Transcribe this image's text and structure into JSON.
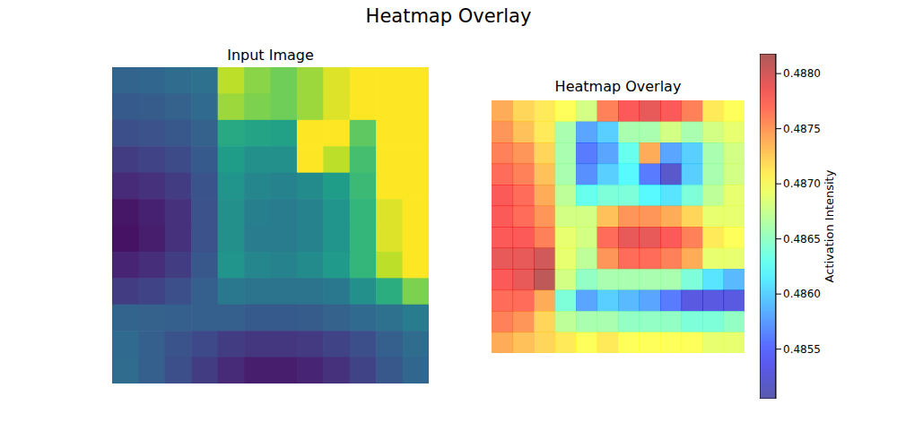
{
  "title": "Heatmap Overlay",
  "chart_data": [
    {
      "type": "heatmap",
      "title": "Input Image",
      "tick_labels": false,
      "color_range": [
        0,
        1
      ],
      "cells": [
        [
          0.32,
          0.33,
          0.35,
          0.37,
          0.9,
          0.82,
          0.78,
          0.85,
          0.95,
          1,
          1,
          1
        ],
        [
          0.28,
          0.29,
          0.31,
          0.34,
          0.85,
          0.8,
          0.78,
          0.85,
          0.95,
          1,
          1,
          1
        ],
        [
          0.24,
          0.25,
          0.27,
          0.31,
          0.6,
          0.58,
          0.57,
          1,
          1,
          0.75,
          1,
          1
        ],
        [
          0.18,
          0.2,
          0.23,
          0.28,
          0.55,
          0.5,
          0.5,
          1,
          0.9,
          0.7,
          1,
          1
        ],
        [
          0.12,
          0.14,
          0.18,
          0.26,
          0.52,
          0.46,
          0.45,
          0.48,
          0.55,
          0.68,
          1,
          1
        ],
        [
          0.06,
          0.09,
          0.14,
          0.25,
          0.5,
          0.43,
          0.42,
          0.45,
          0.52,
          0.66,
          0.95,
          1
        ],
        [
          0.05,
          0.08,
          0.14,
          0.25,
          0.5,
          0.42,
          0.42,
          0.45,
          0.52,
          0.66,
          0.95,
          1
        ],
        [
          0.1,
          0.13,
          0.18,
          0.27,
          0.52,
          0.46,
          0.45,
          0.48,
          0.54,
          0.66,
          0.9,
          1
        ],
        [
          0.18,
          0.2,
          0.24,
          0.3,
          0.4,
          0.38,
          0.38,
          0.38,
          0.4,
          0.5,
          0.62,
          0.8
        ],
        [
          0.32,
          0.31,
          0.3,
          0.3,
          0.3,
          0.28,
          0.28,
          0.29,
          0.31,
          0.34,
          0.37,
          0.42
        ],
        [
          0.34,
          0.3,
          0.26,
          0.22,
          0.18,
          0.16,
          0.16,
          0.17,
          0.2,
          0.24,
          0.3,
          0.35
        ],
        [
          0.35,
          0.3,
          0.24,
          0.18,
          0.12,
          0.08,
          0.08,
          0.1,
          0.14,
          0.2,
          0.27,
          0.33
        ]
      ]
    },
    {
      "type": "heatmap",
      "title": "Heatmap Overlay",
      "tick_labels": false,
      "cells": [
        [
          0.4874,
          0.4872,
          0.4871,
          0.487,
          0.4868,
          0.4876,
          0.4878,
          0.4879,
          0.4878,
          0.4876,
          0.4871,
          0.487
        ],
        [
          0.4875,
          0.4873,
          0.4871,
          0.4866,
          0.4858,
          0.486,
          0.4866,
          0.4866,
          0.4868,
          0.4866,
          0.4868,
          0.4869
        ],
        [
          0.4876,
          0.4875,
          0.4872,
          0.4866,
          0.4856,
          0.4858,
          0.4863,
          0.4874,
          0.4858,
          0.486,
          0.4866,
          0.4868
        ],
        [
          0.4877,
          0.4876,
          0.4873,
          0.4866,
          0.4857,
          0.486,
          0.4862,
          0.4856,
          0.4852,
          0.486,
          0.4866,
          0.4868
        ],
        [
          0.4878,
          0.4877,
          0.4874,
          0.4867,
          0.4863,
          0.4864,
          0.4864,
          0.4862,
          0.4861,
          0.4864,
          0.4867,
          0.4869
        ],
        [
          0.4878,
          0.4877,
          0.4875,
          0.4868,
          0.4868,
          0.4873,
          0.4875,
          0.4875,
          0.4874,
          0.4872,
          0.4869,
          0.4869
        ],
        [
          0.4878,
          0.4878,
          0.4876,
          0.4869,
          0.4868,
          0.4877,
          0.4879,
          0.4879,
          0.4878,
          0.4876,
          0.4871,
          0.487
        ],
        [
          0.4879,
          0.4879,
          0.488,
          0.4869,
          0.4867,
          0.4875,
          0.4877,
          0.4877,
          0.4876,
          0.4874,
          0.4869,
          0.4869
        ],
        [
          0.4878,
          0.4879,
          0.4881,
          0.4868,
          0.4865,
          0.4866,
          0.4866,
          0.4866,
          0.4866,
          0.4864,
          0.4861,
          0.4859
        ],
        [
          0.4877,
          0.4877,
          0.4874,
          0.4864,
          0.4858,
          0.486,
          0.4859,
          0.4858,
          0.4856,
          0.4853,
          0.4853,
          0.4853
        ],
        [
          0.4876,
          0.4875,
          0.4872,
          0.4867,
          0.4866,
          0.4866,
          0.4865,
          0.4865,
          0.4865,
          0.4864,
          0.4864,
          0.4865
        ],
        [
          0.4874,
          0.4873,
          0.4872,
          0.4871,
          0.487,
          0.4871,
          0.487,
          0.487,
          0.487,
          0.487,
          0.4869,
          0.4869
        ]
      ],
      "colorbar": {
        "label": "Activation Intensity",
        "range": [
          0.48505,
          0.48818
        ],
        "ticks": [
          {
            "value": 0.4855,
            "label": "0.4855"
          },
          {
            "value": 0.486,
            "label": "0.4860"
          },
          {
            "value": 0.4865,
            "label": "0.4865"
          },
          {
            "value": 0.487,
            "label": "0.4870"
          },
          {
            "value": 0.4875,
            "label": "0.4875"
          },
          {
            "value": 0.488,
            "label": "0.4880"
          }
        ]
      }
    }
  ]
}
